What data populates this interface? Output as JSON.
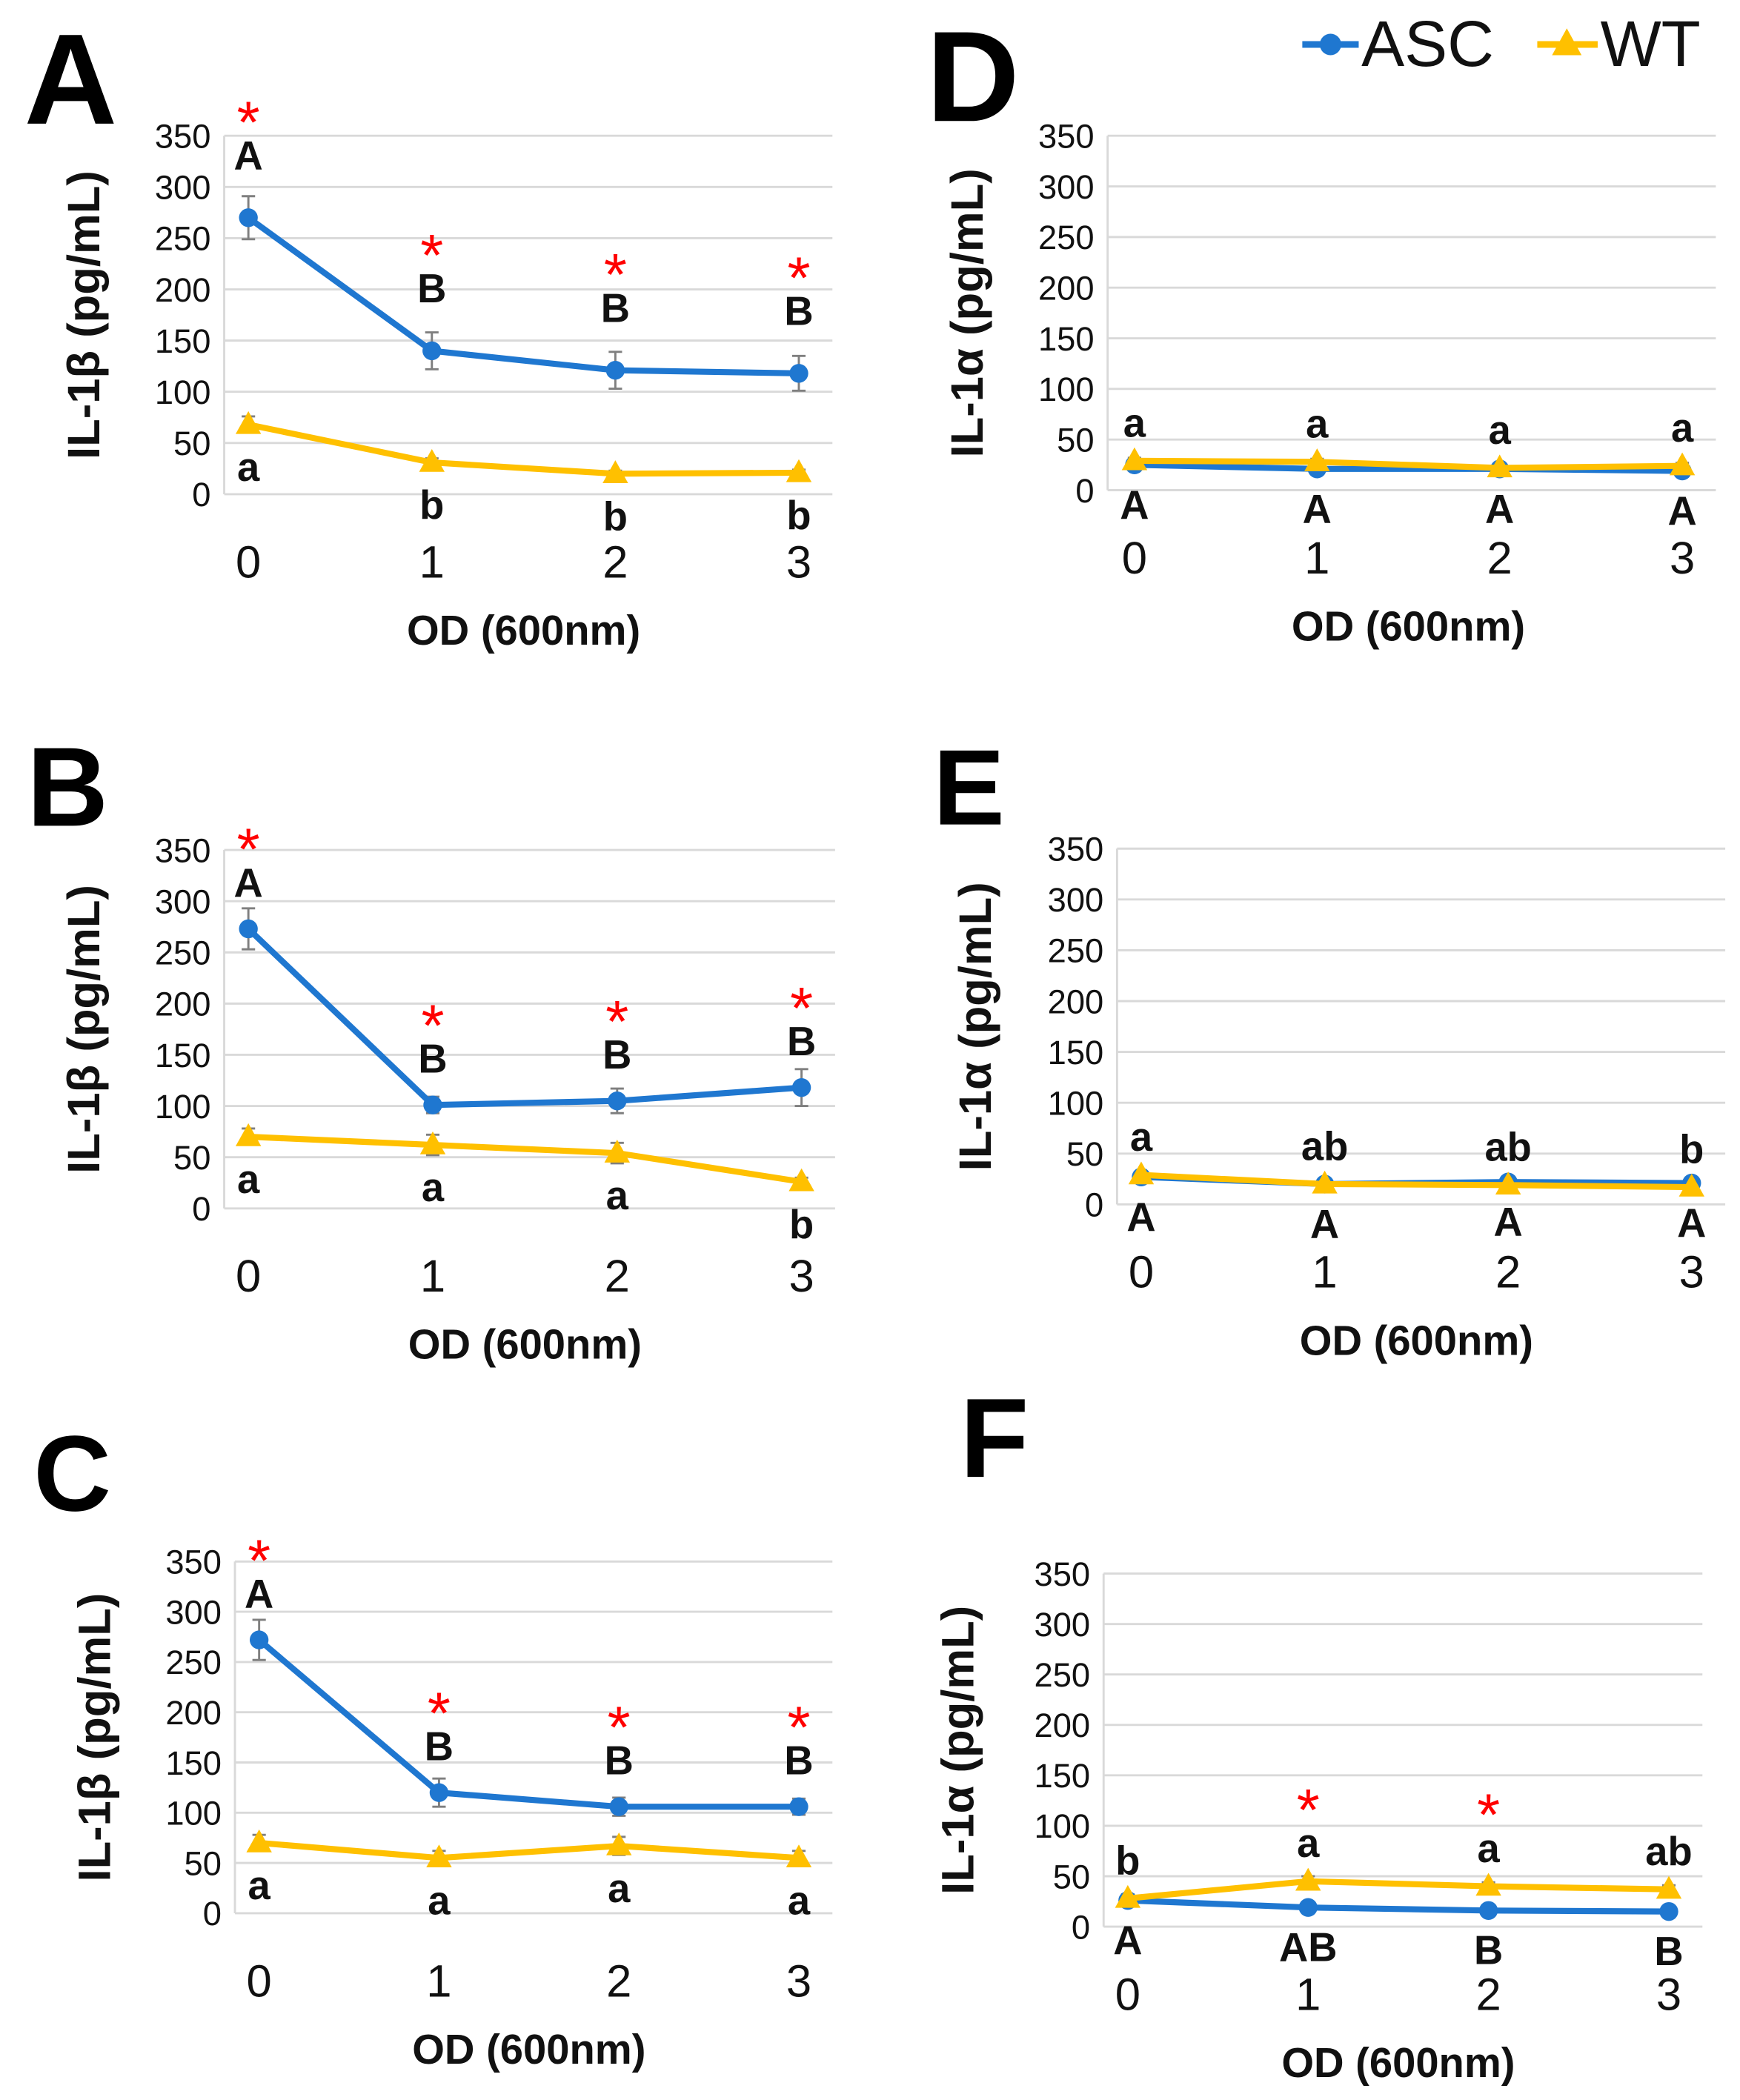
{
  "legend": [
    {
      "label": "ASC",
      "color": "#1f77d0",
      "marker": "circle"
    },
    {
      "label": "WT",
      "color": "#ffc000",
      "marker": "triangle"
    }
  ],
  "significance": {
    "marker": "*",
    "color": "#ff0000"
  },
  "chart_data": [
    {
      "panel": "A",
      "type": "line",
      "ylabel": "IL-1β (pg/mL)",
      "xlabel": "OD (600nm)",
      "x": [
        0,
        1,
        2,
        3
      ],
      "yticks": [
        0,
        50,
        100,
        150,
        200,
        250,
        300,
        350
      ],
      "ylim": [
        0,
        350
      ],
      "grid": true,
      "significant": [
        true,
        true,
        true,
        true
      ],
      "series": [
        {
          "legend_index": 0,
          "values": [
            270,
            140,
            121,
            118
          ],
          "error": [
            21,
            18,
            18,
            17
          ],
          "letters": [
            "A",
            "B",
            "B",
            "B"
          ]
        },
        {
          "legend_index": 1,
          "values": [
            68,
            31,
            20,
            21
          ],
          "error": [
            8,
            4,
            3,
            3
          ],
          "letters": [
            "a",
            "b",
            "b",
            "b"
          ]
        }
      ]
    },
    {
      "panel": "B",
      "type": "line",
      "ylabel": "IL-1β (pg/mL)",
      "xlabel": "OD (600nm)",
      "x": [
        0,
        1,
        2,
        3
      ],
      "yticks": [
        0,
        50,
        100,
        150,
        200,
        250,
        300,
        350
      ],
      "ylim": [
        0,
        350
      ],
      "grid": true,
      "significant": [
        true,
        true,
        true,
        true
      ],
      "series": [
        {
          "legend_index": 0,
          "values": [
            273,
            101,
            105,
            118
          ],
          "error": [
            20,
            8,
            12,
            18
          ],
          "letters": [
            "A",
            "B",
            "B",
            "B"
          ]
        },
        {
          "legend_index": 1,
          "values": [
            70,
            62,
            54,
            26
          ],
          "error": [
            8,
            10,
            10,
            4
          ],
          "letters": [
            "a",
            "a",
            "a",
            "b"
          ]
        }
      ]
    },
    {
      "panel": "C",
      "type": "line",
      "ylabel": "IL-1β (pg/mL)",
      "xlabel": "OD (600nm)",
      "x": [
        0,
        1,
        2,
        3
      ],
      "yticks": [
        0,
        50,
        100,
        150,
        200,
        250,
        300,
        350
      ],
      "ylim": [
        0,
        350
      ],
      "grid": true,
      "significant": [
        true,
        true,
        true,
        true
      ],
      "series": [
        {
          "legend_index": 0,
          "values": [
            272,
            120,
            106,
            106
          ],
          "error": [
            20,
            14,
            9,
            8
          ],
          "letters": [
            "A",
            "B",
            "B",
            "B"
          ]
        },
        {
          "legend_index": 1,
          "values": [
            70,
            55,
            67,
            55
          ],
          "error": [
            8,
            7,
            9,
            7
          ],
          "letters": [
            "a",
            "a",
            "a",
            "a"
          ]
        }
      ]
    },
    {
      "panel": "D",
      "type": "line",
      "ylabel": "IL-1α (pg/mL)",
      "xlabel": "OD (600nm)",
      "x": [
        0,
        1,
        2,
        3
      ],
      "yticks": [
        0,
        50,
        100,
        150,
        200,
        250,
        300,
        350
      ],
      "ylim": [
        0,
        350
      ],
      "grid": true,
      "significant": [
        false,
        false,
        false,
        false
      ],
      "series": [
        {
          "legend_index": 0,
          "values": [
            25,
            21,
            21,
            19
          ],
          "error": [
            3,
            3,
            3,
            3
          ],
          "letters": [
            "A",
            "A",
            "A",
            "A"
          ]
        },
        {
          "legend_index": 1,
          "values": [
            29,
            28,
            22,
            24
          ],
          "error": [
            3,
            3,
            3,
            3
          ],
          "letters": [
            "a",
            "a",
            "a",
            "a"
          ]
        }
      ]
    },
    {
      "panel": "E",
      "type": "line",
      "ylabel": "IL-1α (pg/mL)",
      "xlabel": "OD (600nm)",
      "x": [
        0,
        1,
        2,
        3
      ],
      "yticks": [
        0,
        50,
        100,
        150,
        200,
        250,
        300,
        350
      ],
      "ylim": [
        0,
        350
      ],
      "grid": true,
      "significant": [
        false,
        false,
        false,
        false
      ],
      "series": [
        {
          "legend_index": 0,
          "values": [
            27,
            20,
            22,
            21
          ],
          "error": [
            3,
            3,
            3,
            3
          ],
          "letters": [
            "A",
            "A",
            "A",
            "A"
          ]
        },
        {
          "legend_index": 1,
          "values": [
            29,
            20,
            19,
            17
          ],
          "error": [
            3,
            3,
            2,
            2
          ],
          "letters": [
            "a",
            "ab",
            "ab",
            "b"
          ]
        }
      ]
    },
    {
      "panel": "F",
      "type": "line",
      "ylabel": "IL-1α (pg/mL)",
      "xlabel": "OD (600nm)",
      "x": [
        0,
        1,
        2,
        3
      ],
      "yticks": [
        0,
        50,
        100,
        150,
        200,
        250,
        300,
        350
      ],
      "ylim": [
        0,
        350
      ],
      "grid": true,
      "significant": [
        false,
        true,
        true,
        false
      ],
      "series": [
        {
          "legend_index": 0,
          "values": [
            26,
            19,
            16,
            15
          ],
          "error": [
            3,
            3,
            2,
            2
          ],
          "letters": [
            "A",
            "AB",
            "B",
            "B"
          ]
        },
        {
          "legend_index": 1,
          "values": [
            28,
            45,
            40,
            37
          ],
          "error": [
            4,
            5,
            4,
            4
          ],
          "letters": [
            "b",
            "a",
            "a",
            "ab"
          ]
        }
      ]
    }
  ]
}
